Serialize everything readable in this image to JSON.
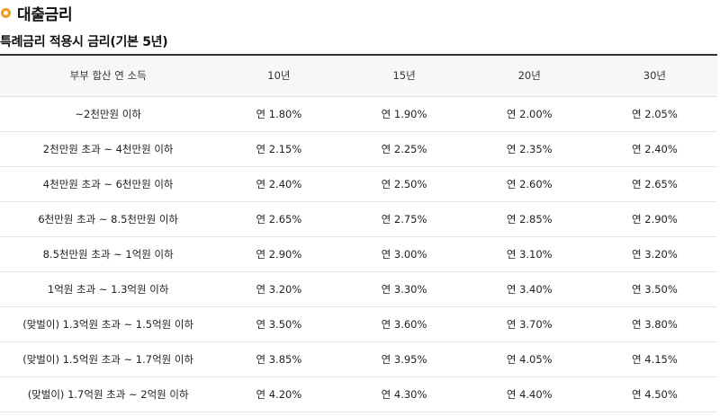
{
  "section": {
    "title": "대출금리",
    "bullet_color": "#f59a23"
  },
  "subtitle": "특례금리 적용시 금리(기본 5년)",
  "table": {
    "header": {
      "income": "부부 합산 연 소득",
      "terms": [
        "10년",
        "15년",
        "20년",
        "30년"
      ]
    },
    "rows": [
      {
        "income": "~2천만원 이하",
        "rates": [
          "연 1.80%",
          "연 1.90%",
          "연 2.00%",
          "연 2.05%"
        ]
      },
      {
        "income": "2천만원 초과 ~ 4천만원 이하",
        "rates": [
          "연 2.15%",
          "연 2.25%",
          "연 2.35%",
          "연 2.40%"
        ]
      },
      {
        "income": "4천만원 초과 ~ 6천만원 이하",
        "rates": [
          "연 2.40%",
          "연 2.50%",
          "연 2.60%",
          "연 2.65%"
        ]
      },
      {
        "income": "6천만원 초과 ~ 8.5천만원 이하",
        "rates": [
          "연 2.65%",
          "연 2.75%",
          "연 2.85%",
          "연 2.90%"
        ]
      },
      {
        "income": "8.5천만원 초과 ~ 1억원 이하",
        "rates": [
          "연 2.90%",
          "연 3.00%",
          "연 3.10%",
          "연 3.20%"
        ]
      },
      {
        "income": "1억원 초과 ~ 1.3억원 이하",
        "rates": [
          "연 3.20%",
          "연 3.30%",
          "연 3.40%",
          "연 3.50%"
        ]
      },
      {
        "income": "(맞벌이) 1.3억원 초과 ~ 1.5억원 이하",
        "rates": [
          "연 3.50%",
          "연 3.60%",
          "연 3.70%",
          "연 3.80%"
        ]
      },
      {
        "income": "(맞벌이) 1.5억원 초과 ~ 1.7억원 이하",
        "rates": [
          "연 3.85%",
          "연 3.95%",
          "연 4.05%",
          "연 4.15%"
        ]
      },
      {
        "income": "(맞벌이) 1.7억원 초과 ~ 2억원 이하",
        "rates": [
          "연 4.20%",
          "연 4.30%",
          "연 4.40%",
          "연 4.50%"
        ]
      }
    ]
  }
}
